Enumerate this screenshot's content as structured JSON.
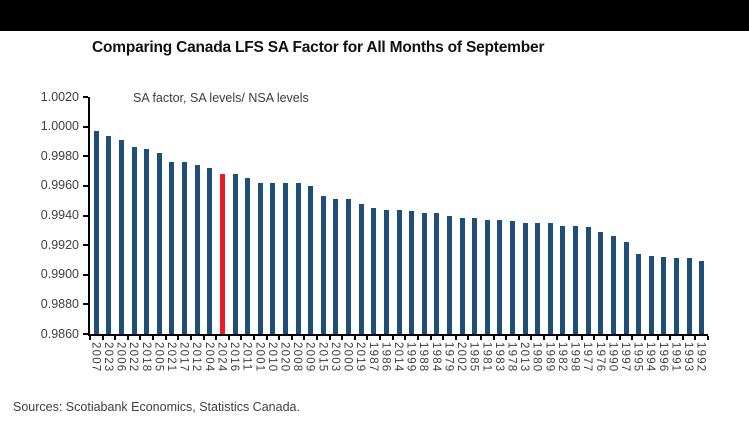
{
  "header": {
    "bar_color": "#000000"
  },
  "title": "Comparing Canada LFS SA Factor for All Months of September",
  "footer": "Sources: Scotiabank Economics, Statistics Canada.",
  "chart_data": {
    "type": "bar",
    "title": "Comparing Canada LFS SA Factor for All Months of September",
    "annotation": "SA factor, SA levels/ NSA levels",
    "xlabel": "",
    "ylabel": "",
    "grid": false,
    "legend_position": "none",
    "ylim": [
      0.986,
      1.002
    ],
    "ytick_labels": [
      "1.0020",
      "1.0000",
      "0.9980",
      "0.9960",
      "0.9940",
      "0.9920",
      "0.9900",
      "0.9880",
      "0.9860"
    ],
    "categories": [
      "2007",
      "2023",
      "2006",
      "2022",
      "2018",
      "2005",
      "2021",
      "2017",
      "2012",
      "2004",
      "2024",
      "2016",
      "2011",
      "2001",
      "2010",
      "2020",
      "2008",
      "2009",
      "2015",
      "2003",
      "2000",
      "2019",
      "1987",
      "1986",
      "2014",
      "1999",
      "1988",
      "1984",
      "1979",
      "2002",
      "1985",
      "1981",
      "1983",
      "1978",
      "2013",
      "1980",
      "1989",
      "1982",
      "1998",
      "1977",
      "1976",
      "1990",
      "1997",
      "1995",
      "1994",
      "1996",
      "1991",
      "1993",
      "1992"
    ],
    "values": [
      0.9997,
      0.9994,
      0.9991,
      0.9986,
      0.9985,
      0.9982,
      0.9976,
      0.9976,
      0.9974,
      0.9972,
      0.9968,
      0.9968,
      0.9965,
      0.9962,
      0.9962,
      0.9962,
      0.9962,
      0.996,
      0.9953,
      0.9951,
      0.9951,
      0.9948,
      0.9945,
      0.9944,
      0.9944,
      0.9943,
      0.9942,
      0.9942,
      0.994,
      0.9938,
      0.9938,
      0.9937,
      0.9937,
      0.9936,
      0.9935,
      0.9935,
      0.9935,
      0.9933,
      0.9933,
      0.9932,
      0.9929,
      0.9926,
      0.9922,
      0.9914,
      0.9913,
      0.9912,
      0.9911,
      0.9911,
      0.9909
    ],
    "highlight_category": "2024",
    "bar_color": "#1F4E79",
    "highlight_color": "#ED1C24",
    "axis_color": "#000000",
    "label_color": "#404040"
  }
}
